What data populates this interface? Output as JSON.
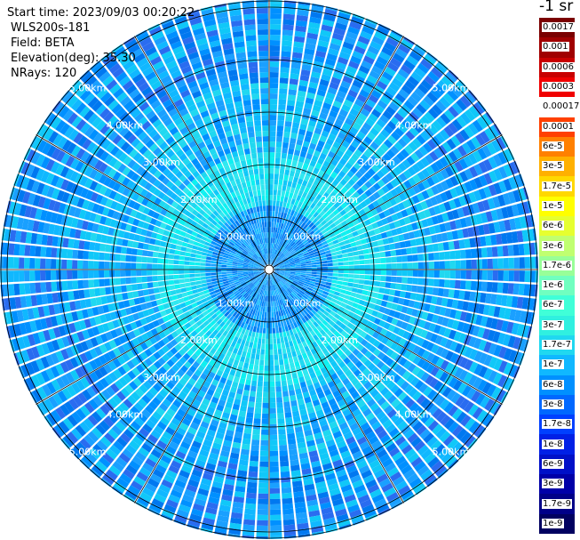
{
  "header": {
    "start_time": "Start time: 2023/09/03 00:20:22",
    "device": "WLS200s-181",
    "field": "Field: BETA",
    "elevation": "Elevation(deg): 35.30",
    "nrays": "NRays: 120"
  },
  "colorbar": {
    "unit": "-1 sr",
    "ticks": [
      "0.0017",
      "0.001",
      "0.0006",
      "0.0003",
      "0.00017",
      "0.0001",
      "6e-5",
      "3e-5",
      "1.7e-5",
      "1e-5",
      "6e-6",
      "3e-6",
      "1.7e-6",
      "1e-6",
      "6e-7",
      "3e-7",
      "1.7e-7",
      "1e-7",
      "6e-8",
      "3e-8",
      "1.7e-8",
      "1e-8",
      "6e-9",
      "3e-9",
      "1.7e-9",
      "1e-9"
    ],
    "colors": [
      "#7a0000",
      "#a00000",
      "#c80000",
      "#f00000",
      "#ffffff",
      "#ff4000",
      "#ff8000",
      "#ffb000",
      "#ffd800",
      "#ffff00",
      "#e6ff30",
      "#c0ff70",
      "#98ff98",
      "#70ffc0",
      "#40ffd8",
      "#30f0e0",
      "#20d8f0",
      "#10b8ff",
      "#0090ff",
      "#0068ff",
      "#0040ff",
      "#0020e6",
      "#0010c8",
      "#0000a8",
      "#000088",
      "#000060"
    ]
  },
  "range_rings": {
    "labels": [
      "1.00km",
      "2.00km",
      "3.00km",
      "4.00km",
      "5.00km"
    ]
  },
  "ppi": {
    "nrays": 120,
    "palette": [
      "#0ff0f0",
      "#30e8f0",
      "#20d8f0",
      "#10c8f8",
      "#10b8ff",
      "#1aa0ff",
      "#0090ff",
      "#0078f0",
      "#2a6cf0"
    ]
  }
}
